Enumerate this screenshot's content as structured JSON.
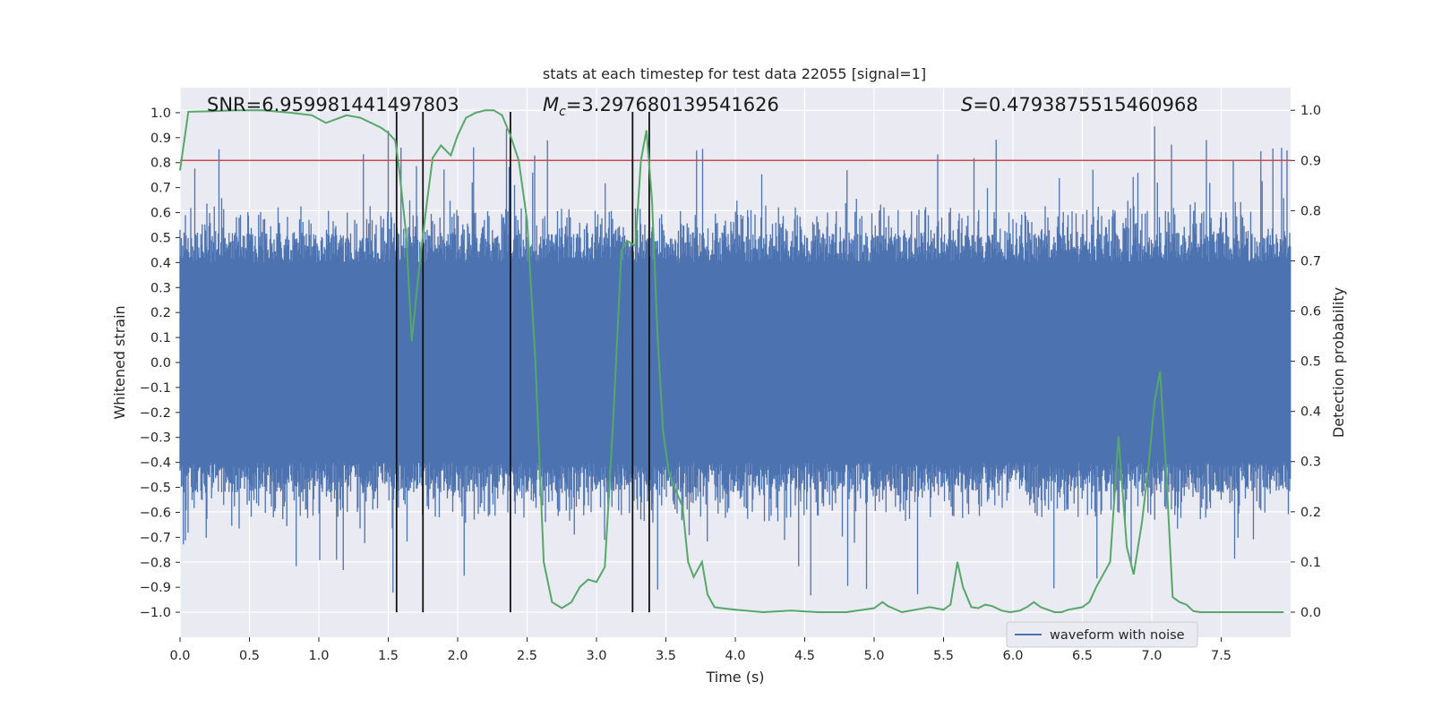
{
  "chart_data": {
    "type": "line",
    "title": "stats at each timestep for test data 22055 [signal=1]",
    "xlabel": "Time (s)",
    "ylabel_left": "Whitened strain",
    "ylabel_right": "Detection probability",
    "xlim": [
      0.0,
      8.0
    ],
    "ylim_left": [
      -1.1,
      1.1
    ],
    "ylim_right": [
      -0.05,
      1.045
    ],
    "x_ticks": [
      "0.0",
      "0.5",
      "1.0",
      "1.5",
      "2.0",
      "2.5",
      "3.0",
      "3.5",
      "4.0",
      "4.5",
      "5.0",
      "5.5",
      "6.0",
      "6.5",
      "7.0",
      "7.5"
    ],
    "y_left_ticks": [
      "1.0",
      "0.9",
      "0.8",
      "0.7",
      "0.6",
      "0.5",
      "0.4",
      "0.3",
      "0.2",
      "0.1",
      "0.0",
      "−0.1",
      "−0.2",
      "−0.3",
      "−0.4",
      "−0.5",
      "−0.6",
      "−0.7",
      "−0.8",
      "−0.9",
      "−1.0"
    ],
    "y_right_ticks": [
      "1.0",
      "0.9",
      "0.8",
      "0.7",
      "0.6",
      "0.5",
      "0.4",
      "0.3",
      "0.2",
      "0.1",
      "0.0"
    ],
    "grid": true,
    "legend_location": "lower-right",
    "annotations": {
      "snr": "SNR=6.959981441497803",
      "mc_symbol": "M",
      "mc_sub": "c",
      "mc_value": "=3.297680139541626",
      "s_symbol": "S",
      "s_value": "=0.4793875515460968"
    },
    "threshold_probability": 0.9,
    "event_lines_time": [
      1.56,
      1.75,
      2.38,
      3.26,
      3.38
    ],
    "series": [
      {
        "name": "waveform with noise",
        "color": "#4c72b0",
        "description": "whitened strain noise, roughly bounded within ±0.95",
        "core_amplitude": 0.4,
        "peak_amplitude": 0.95
      },
      {
        "name": "detection probability",
        "color": "#55a868",
        "x": [
          0.0,
          0.06,
          0.2,
          0.4,
          0.6,
          0.8,
          0.95,
          1.05,
          1.2,
          1.3,
          1.45,
          1.5,
          1.55,
          1.58,
          1.63,
          1.67,
          1.72,
          1.78,
          1.82,
          1.88,
          1.95,
          2.0,
          2.06,
          2.13,
          2.2,
          2.26,
          2.32,
          2.38,
          2.44,
          2.5,
          2.56,
          2.62,
          2.68,
          2.75,
          2.82,
          2.88,
          2.94,
          3.0,
          3.06,
          3.12,
          3.18,
          3.22,
          3.28,
          3.32,
          3.36,
          3.4,
          3.44,
          3.48,
          3.52,
          3.56,
          3.62,
          3.66,
          3.7,
          3.76,
          3.8,
          3.85,
          3.9,
          4.0,
          4.2,
          4.4,
          4.6,
          4.8,
          5.0,
          5.06,
          5.1,
          5.2,
          5.3,
          5.4,
          5.5,
          5.55,
          5.6,
          5.64,
          5.7,
          5.75,
          5.8,
          5.85,
          5.92,
          5.98,
          6.05,
          6.1,
          6.15,
          6.2,
          6.3,
          6.35,
          6.4,
          6.5,
          6.55,
          6.6,
          6.7,
          6.76,
          6.82,
          6.87,
          6.93,
          6.98,
          7.02,
          7.06,
          7.1,
          7.15,
          7.2,
          7.25,
          7.3,
          7.35,
          7.43,
          7.5,
          7.6,
          7.7,
          7.8,
          7.95
        ],
        "values": [
          0.88,
          0.997,
          0.998,
          1.0,
          1.0,
          0.995,
          0.99,
          0.975,
          0.99,
          0.985,
          0.965,
          0.955,
          0.94,
          0.88,
          0.75,
          0.54,
          0.68,
          0.82,
          0.905,
          0.93,
          0.91,
          0.95,
          0.985,
          0.995,
          1.0,
          1.0,
          0.99,
          0.95,
          0.9,
          0.78,
          0.5,
          0.1,
          0.02,
          0.008,
          0.02,
          0.05,
          0.065,
          0.06,
          0.09,
          0.38,
          0.72,
          0.74,
          0.73,
          0.9,
          0.96,
          0.82,
          0.55,
          0.36,
          0.28,
          0.25,
          0.21,
          0.1,
          0.07,
          0.1,
          0.035,
          0.01,
          0.008,
          0.005,
          0.0,
          0.003,
          0.0,
          0.0,
          0.008,
          0.02,
          0.012,
          0.0,
          0.005,
          0.01,
          0.005,
          0.015,
          0.1,
          0.05,
          0.01,
          0.008,
          0.015,
          0.012,
          0.003,
          0.0,
          0.003,
          0.01,
          0.02,
          0.01,
          0.0,
          0.0,
          0.005,
          0.01,
          0.02,
          0.05,
          0.1,
          0.35,
          0.13,
          0.075,
          0.18,
          0.3,
          0.42,
          0.48,
          0.3,
          0.03,
          0.02,
          0.015,
          0.002,
          0.0,
          0.0,
          0.0,
          0.0,
          0.0,
          0.0,
          0.0
        ]
      }
    ]
  }
}
